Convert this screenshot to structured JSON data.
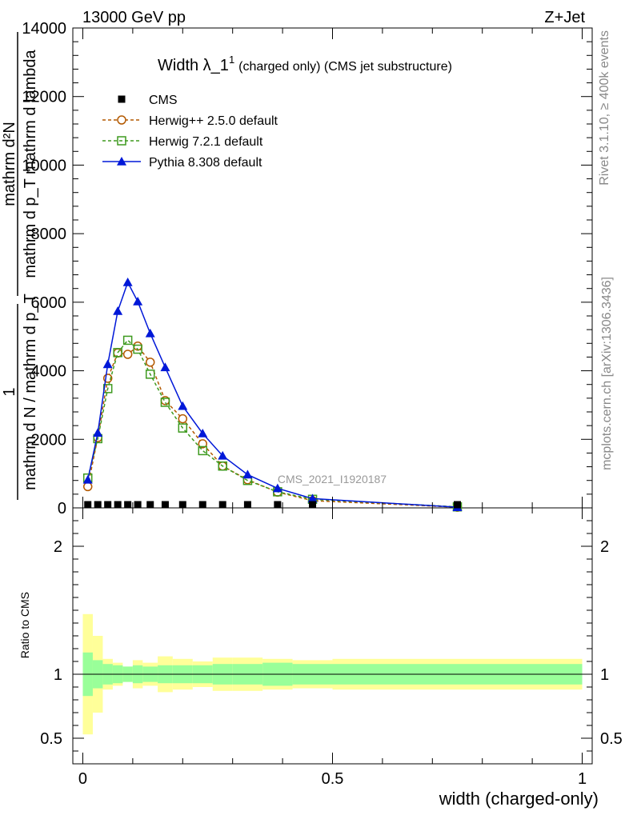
{
  "header": {
    "energy_label": "13000 GeV pp",
    "process_label": "Z+Jet"
  },
  "side_labels": {
    "rivet": "Rivet 3.1.10, ≥ 400k events",
    "mcplots": "mcplots.cern.ch [arXiv:1306.3436]"
  },
  "watermark": "CMS_2021_I1920187",
  "chart_data": {
    "type": "line",
    "title": {
      "main": "Width λ_1",
      "sup": "1",
      "rest": "(charged only) (CMS jet substructure)"
    },
    "xlabel": "width (charged-only)",
    "ylabel": {
      "line1": "mathrm d²N",
      "line2": "mathrm d p_T mathrm d lambda",
      "one": "1",
      "denom": "mathrm d N / mathrm d p_T"
    },
    "ratio_ylabel": "Ratio to CMS",
    "xlim": [
      -0.02,
      1.02
    ],
    "ylim": [
      0,
      14000
    ],
    "ratio_ylim": [
      0.3,
      2.3
    ],
    "x_ticks": [
      {
        "v": 0,
        "label": "0"
      },
      {
        "v": 0.5,
        "label": "0.5"
      },
      {
        "v": 1,
        "label": "1"
      }
    ],
    "y_ticks": [
      {
        "v": 0,
        "label": "0"
      },
      {
        "v": 2000,
        "label": "2000"
      },
      {
        "v": 4000,
        "label": "4000"
      },
      {
        "v": 6000,
        "label": "6000"
      },
      {
        "v": 8000,
        "label": "8000"
      },
      {
        "v": 10000,
        "label": "10000"
      },
      {
        "v": 12000,
        "label": "12000"
      },
      {
        "v": 14000,
        "label": "14000"
      }
    ],
    "ratio_ticks": [
      {
        "v": 0.5,
        "label": "0.5"
      },
      {
        "v": 1,
        "label": "1"
      },
      {
        "v": 2,
        "label": "2"
      }
    ],
    "bins": [
      0,
      0.02,
      0.04,
      0.06,
      0.08,
      0.1,
      0.12,
      0.15,
      0.18,
      0.22,
      0.26,
      0.3,
      0.36,
      0.42,
      0.5,
      1.0
    ],
    "x": [
      0.01,
      0.03,
      0.05,
      0.07,
      0.09,
      0.11,
      0.135,
      0.165,
      0.2,
      0.24,
      0.28,
      0.33,
      0.39,
      0.46,
      0.75
    ],
    "series": [
      {
        "name": "CMS",
        "color": "#000000",
        "marker": "square-filled",
        "dash": "none",
        "values": [
          40,
          40,
          40,
          40,
          40,
          40,
          40,
          40,
          40,
          40,
          40,
          40,
          40,
          40,
          40
        ]
      },
      {
        "name": "Herwig++ 2.5.0 default",
        "color": "#b35900",
        "marker": "circle-open",
        "dash": "4,3",
        "values": [
          620,
          2050,
          3780,
          4520,
          4480,
          4720,
          4250,
          3130,
          2600,
          1870,
          1220,
          820,
          460,
          210,
          20
        ]
      },
      {
        "name": "Herwig 7.2.1 default",
        "color": "#3e9a1f",
        "marker": "square-open",
        "dash": "4,3",
        "values": [
          870,
          2020,
          3480,
          4530,
          4890,
          4630,
          3900,
          3080,
          2330,
          1670,
          1220,
          800,
          470,
          250,
          30
        ]
      },
      {
        "name": "Pythia 8.308 default",
        "color": "#0018d8",
        "marker": "triangle-filled",
        "dash": "none",
        "values": [
          820,
          2190,
          4190,
          5740,
          6580,
          6020,
          5090,
          4100,
          2970,
          2170,
          1520,
          970,
          570,
          270,
          20
        ]
      }
    ],
    "ratio_band_inner": [
      0.17,
      0.11,
      0.08,
      0.07,
      0.06,
      0.07,
      0.06,
      0.07,
      0.07,
      0.07,
      0.08,
      0.08,
      0.09,
      0.08,
      0.08
    ],
    "ratio_band_outer": [
      0.47,
      0.3,
      0.12,
      0.09,
      0.06,
      0.11,
      0.09,
      0.14,
      0.12,
      0.1,
      0.13,
      0.13,
      0.12,
      0.11,
      0.12
    ]
  }
}
